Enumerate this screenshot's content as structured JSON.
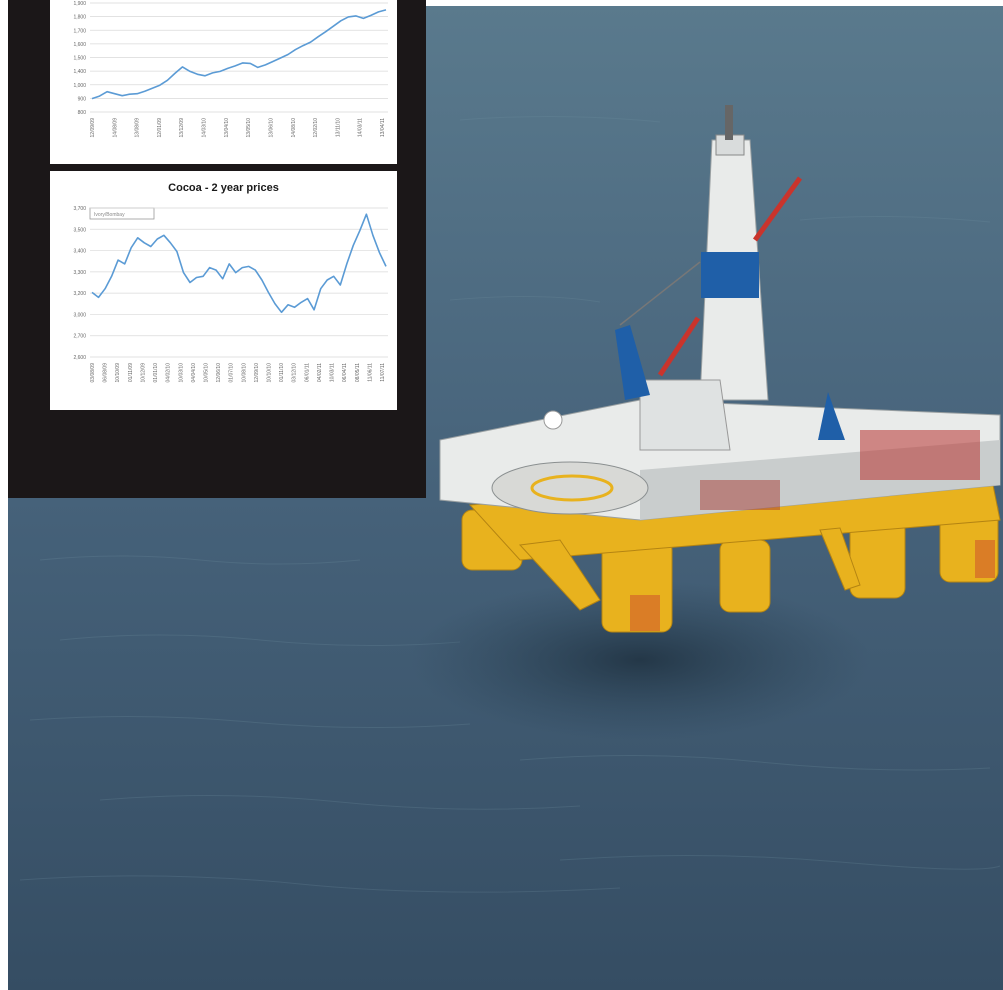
{
  "colors": {
    "sea": "#3f5a6e",
    "inset_bg": "#1b1718",
    "chart_line": "#5b9bd5",
    "rig_yellow": "#e8b21e",
    "rig_blue": "#1f5fa8",
    "rig_white": "#e9ebea"
  },
  "charts": {
    "chart1": {
      "title": ""
    },
    "chart2": {
      "title": "Cocoa - 2 year prices",
      "legend": "Ivory/Bombay"
    }
  },
  "chart_data": [
    {
      "type": "line",
      "title": "",
      "ylim": [
        800,
        1900
      ],
      "y_ticks": [
        "1,900",
        "1,800",
        "1,700",
        "1,600",
        "1,500",
        "1,400",
        "1,000",
        "900",
        "800"
      ],
      "x_ticks": [
        "12/09/09",
        "14/08/09",
        "13/08/09",
        "12/01/09",
        "13/12/09",
        "14/03/10",
        "13/04/10",
        "13/05/10",
        "13/06/10",
        "14/08/10",
        "12/02/10",
        "13/11/10",
        "14/03/11",
        "13/04/11"
      ],
      "series": [
        {
          "values": [
            935,
            960,
            1005,
            985,
            965,
            980,
            985,
            1010,
            1040,
            1070,
            1120,
            1190,
            1255,
            1210,
            1180,
            1165,
            1195,
            1210,
            1240,
            1265,
            1295,
            1290,
            1250,
            1275,
            1310,
            1345,
            1380,
            1430,
            1470,
            1505,
            1560,
            1610,
            1665,
            1720,
            1760,
            1770,
            1745,
            1775,
            1810,
            1830
          ]
        }
      ]
    },
    {
      "type": "line",
      "title": "Cocoa - 2 year prices",
      "ylim": [
        2500,
        3700
      ],
      "y_ticks": [
        "3,700",
        "3,500",
        "3,400",
        "3,300",
        "3,200",
        "3,000",
        "2,700",
        "2,600"
      ],
      "x_ticks": [
        "03/08/09",
        "06/08/09",
        "10/10/09",
        "01/11/09",
        "10/12/09",
        "01/01/10",
        "04/02/10",
        "10/03/10",
        "04/04/10",
        "10/05/10",
        "12/06/10",
        "01/07/10",
        "10/08/10",
        "12/09/10",
        "10/10/10",
        "01/11/10",
        "03/12/10",
        "06/01/11",
        "04/02/11",
        "10/03/11",
        "06/04/11",
        "08/05/11",
        "11/06/11",
        "11/07/11"
      ],
      "legend": [
        "Ivory/Bombay"
      ],
      "series": [
        {
          "name": "Ivory/Bombay",
          "values": [
            3020,
            2980,
            3050,
            3150,
            3280,
            3250,
            3380,
            3460,
            3420,
            3390,
            3450,
            3480,
            3420,
            3350,
            3180,
            3100,
            3140,
            3150,
            3220,
            3200,
            3130,
            3250,
            3180,
            3220,
            3230,
            3200,
            3120,
            3020,
            2930,
            2860,
            2920,
            2900,
            2940,
            2970,
            2880,
            3050,
            3120,
            3150,
            3080,
            3250,
            3400,
            3520,
            3650,
            3480,
            3340,
            3230
          ]
        }
      ]
    }
  ]
}
